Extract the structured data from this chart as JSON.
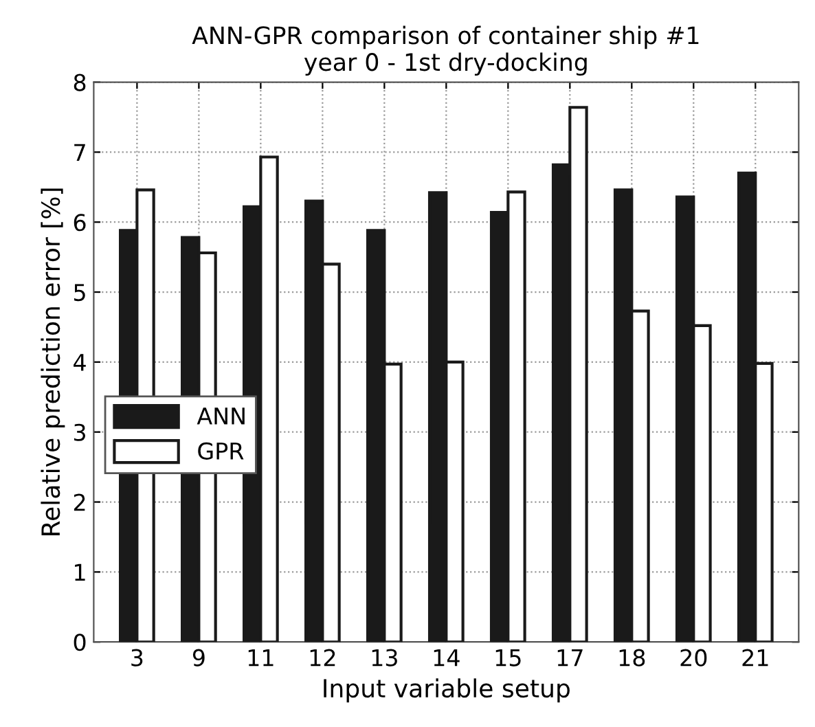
{
  "chart_data": {
    "type": "bar",
    "title": "ANN-GPR comparison of container ship #1\nyear 0 - 1st dry-docking",
    "xlabel": "Input variable setup",
    "ylabel": "Relative prediction error [%]",
    "categories": [
      "3",
      "9",
      "11",
      "12",
      "13",
      "14",
      "15",
      "17",
      "18",
      "20",
      "21"
    ],
    "series": [
      {
        "name": "ANN",
        "color": "#1a1a1a",
        "values": [
          5.88,
          5.78,
          6.22,
          6.3,
          5.88,
          6.42,
          6.14,
          6.82,
          6.46,
          6.36,
          6.7
        ]
      },
      {
        "name": "GPR",
        "color": "#ffffff",
        "values": [
          6.46,
          5.56,
          6.93,
          5.4,
          3.97,
          4.0,
          6.43,
          7.64,
          4.73,
          4.52,
          3.98
        ]
      }
    ],
    "ylim": [
      0,
      8
    ],
    "yticks": [
      0,
      1,
      2,
      3,
      4,
      5,
      6,
      7,
      8
    ],
    "grid": true,
    "legend": "left"
  }
}
